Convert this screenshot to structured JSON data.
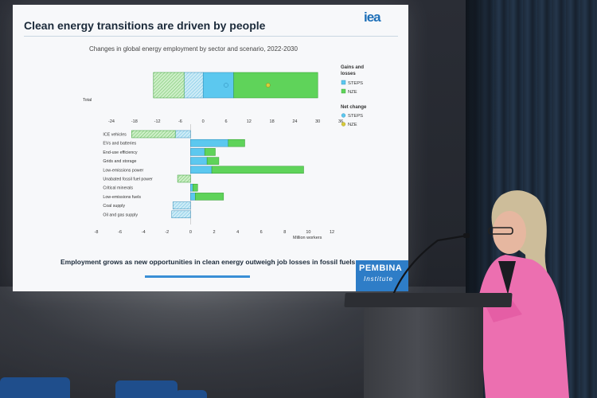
{
  "slide": {
    "title": "Clean energy transitions are driven by people",
    "logo": "iea",
    "subtitle": "Changes in global energy employment by sector and scenario, 2022-2030",
    "footer": "Employment grows as new opportunities in clean energy outweigh job losses in fossil fuels",
    "brand_line1": "PEMBINA",
    "brand_line2": "Institute"
  },
  "legend": {
    "gains_header_1": "Gains and",
    "gains_header_2": "losses",
    "steps_label": "STEPS",
    "nze_label": "NZE",
    "net_header": "Net change",
    "net_steps_label": "STEPS",
    "net_nze_label": "NZE",
    "colors": {
      "steps": "#5cc8ef",
      "nze": "#5fd35a",
      "steps_net": "#5cc8ef",
      "nze_net": "#d8cc3a"
    }
  },
  "chart_data": [
    {
      "type": "bar",
      "orientation": "horizontal",
      "stacked": true,
      "categories": [
        "Total"
      ],
      "xlim": [
        -24,
        36
      ],
      "ticks": [
        "-24",
        "-18",
        "-12",
        "-6",
        "0",
        "6",
        "12",
        "18",
        "24",
        "30",
        "36"
      ],
      "series": [
        {
          "name": "STEPS",
          "values": [
            [
              -5,
              0
            ],
            [
              0,
              8
            ]
          ]
        },
        {
          "name": "NZE",
          "values": [
            [
              -13,
              -5
            ],
            [
              8,
              30
            ]
          ]
        }
      ],
      "net_markers": [
        {
          "name": "STEPS",
          "value": 6
        },
        {
          "name": "NZE",
          "value": 17
        }
      ]
    },
    {
      "type": "bar",
      "orientation": "horizontal",
      "stacked": true,
      "xlabel": "Million workers",
      "xlim": [
        -8,
        12
      ],
      "ticks": [
        "-8",
        "-6",
        "-4",
        "-2",
        "0",
        "2",
        "4",
        "6",
        "8",
        "10",
        "12"
      ],
      "categories": [
        "ICE vehicles",
        "EVs and batteries",
        "End-use efficiency",
        "Grids and storage",
        "Low-emissions power",
        "Unabated fossil fuel power",
        "Critical minerals",
        "Low-emissions fuels",
        "Coal supply",
        "Oil and gas supply"
      ],
      "series": [
        {
          "name": "STEPS",
          "values": [
            -1.3,
            3.2,
            1.2,
            1.4,
            1.8,
            0,
            0.2,
            0.4,
            -1.5,
            -1.6
          ]
        },
        {
          "name": "NZE",
          "values": [
            -5.0,
            4.6,
            2.1,
            2.4,
            9.6,
            -1.1,
            0.6,
            2.8,
            -1.5,
            -1.6
          ]
        }
      ]
    }
  ]
}
